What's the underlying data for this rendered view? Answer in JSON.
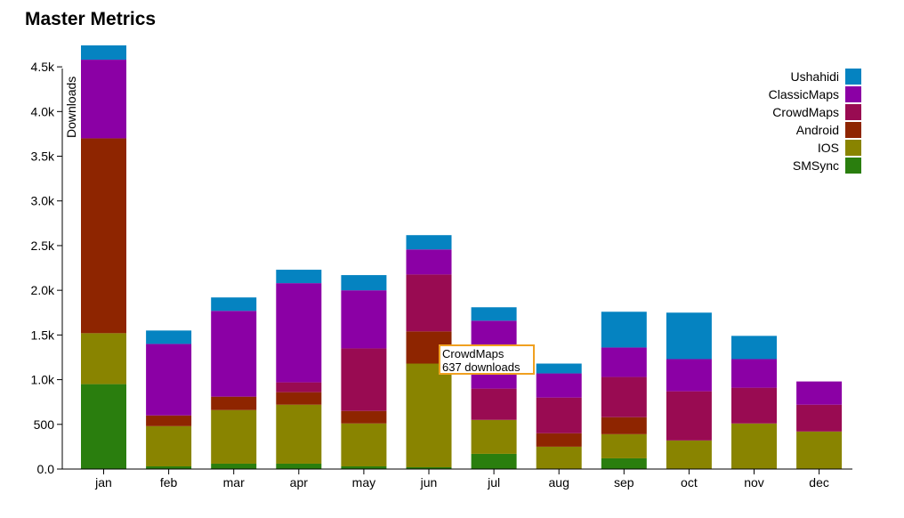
{
  "chart_title": "Master Metrics",
  "tooltip": {
    "series": "CrowdMaps",
    "text": "637 downloads"
  },
  "chart_data": {
    "type": "bar",
    "stacked": true,
    "title": "Master Metrics",
    "xlabel": "",
    "ylabel": "Downloads",
    "ylim": [
      0,
      4750
    ],
    "yticks": [
      0,
      500,
      1000,
      1500,
      2000,
      2500,
      3000,
      3500,
      4000,
      4500
    ],
    "ytick_labels": [
      "0.0",
      "500",
      "1.0k",
      "1.5k",
      "2.0k",
      "2.5k",
      "3.0k",
      "3.5k",
      "4.0k",
      "4.5k"
    ],
    "grid": false,
    "legend_position": "top-right",
    "categories": [
      "jan",
      "feb",
      "mar",
      "apr",
      "may",
      "jun",
      "jul",
      "aug",
      "sep",
      "oct",
      "nov",
      "dec"
    ],
    "series": [
      {
        "name": "SMSync",
        "color": "#2a7e0e",
        "values": [
          950,
          30,
          60,
          60,
          30,
          20,
          170,
          0,
          120,
          0,
          0,
          0
        ]
      },
      {
        "name": "IOS",
        "color": "#898400",
        "values": [
          570,
          450,
          600,
          660,
          480,
          1160,
          380,
          250,
          270,
          320,
          510,
          420
        ]
      },
      {
        "name": "Android",
        "color": "#8e2500",
        "values": [
          2180,
          120,
          150,
          140,
          140,
          360,
          0,
          150,
          190,
          0,
          0,
          0
        ]
      },
      {
        "name": "CrowdMaps",
        "color": "#990b52",
        "values": [
          0,
          0,
          0,
          110,
          700,
          637,
          350,
          400,
          450,
          550,
          400,
          300
        ]
      },
      {
        "name": "ClassicMaps",
        "color": "#8b00a5",
        "values": [
          880,
          800,
          960,
          1110,
          650,
          280,
          760,
          270,
          330,
          360,
          320,
          260
        ]
      },
      {
        "name": "Ushahidi",
        "color": "#0583c1",
        "values": [
          160,
          150,
          150,
          150,
          170,
          160,
          150,
          110,
          400,
          520,
          260,
          0
        ]
      }
    ],
    "legend_order": [
      "Ushahidi",
      "ClassicMaps",
      "CrowdMaps",
      "Android",
      "IOS",
      "SMSync"
    ]
  }
}
